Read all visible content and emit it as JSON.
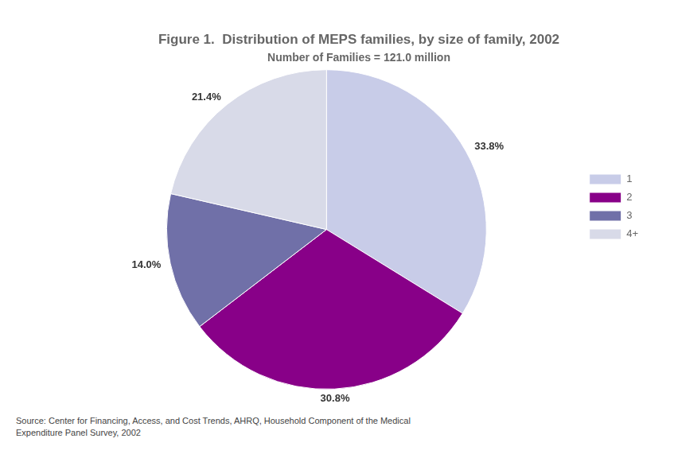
{
  "chart_data": {
    "type": "pie",
    "title": "Figure 1.  Distribution of MEPS families, by size of family, 2002",
    "subtitle": "Number of Families = 121.0 million",
    "categories": [
      "1",
      "2",
      "3",
      "4+"
    ],
    "values": [
      33.8,
      30.8,
      14.0,
      21.4
    ],
    "value_labels": [
      "33.8%",
      "30.8%",
      "14.0%",
      "21.4%"
    ],
    "data_labels": true,
    "colors": [
      "#c8cce8",
      "#880088",
      "#7070a8",
      "#d8dae8"
    ],
    "legend": "right",
    "annotations": [
      "Source:  Center for Financing, Access, and Cost Trends, AHRQ, Household Component of the Medical\nExpenditure Panel Survey, 2002"
    ]
  }
}
